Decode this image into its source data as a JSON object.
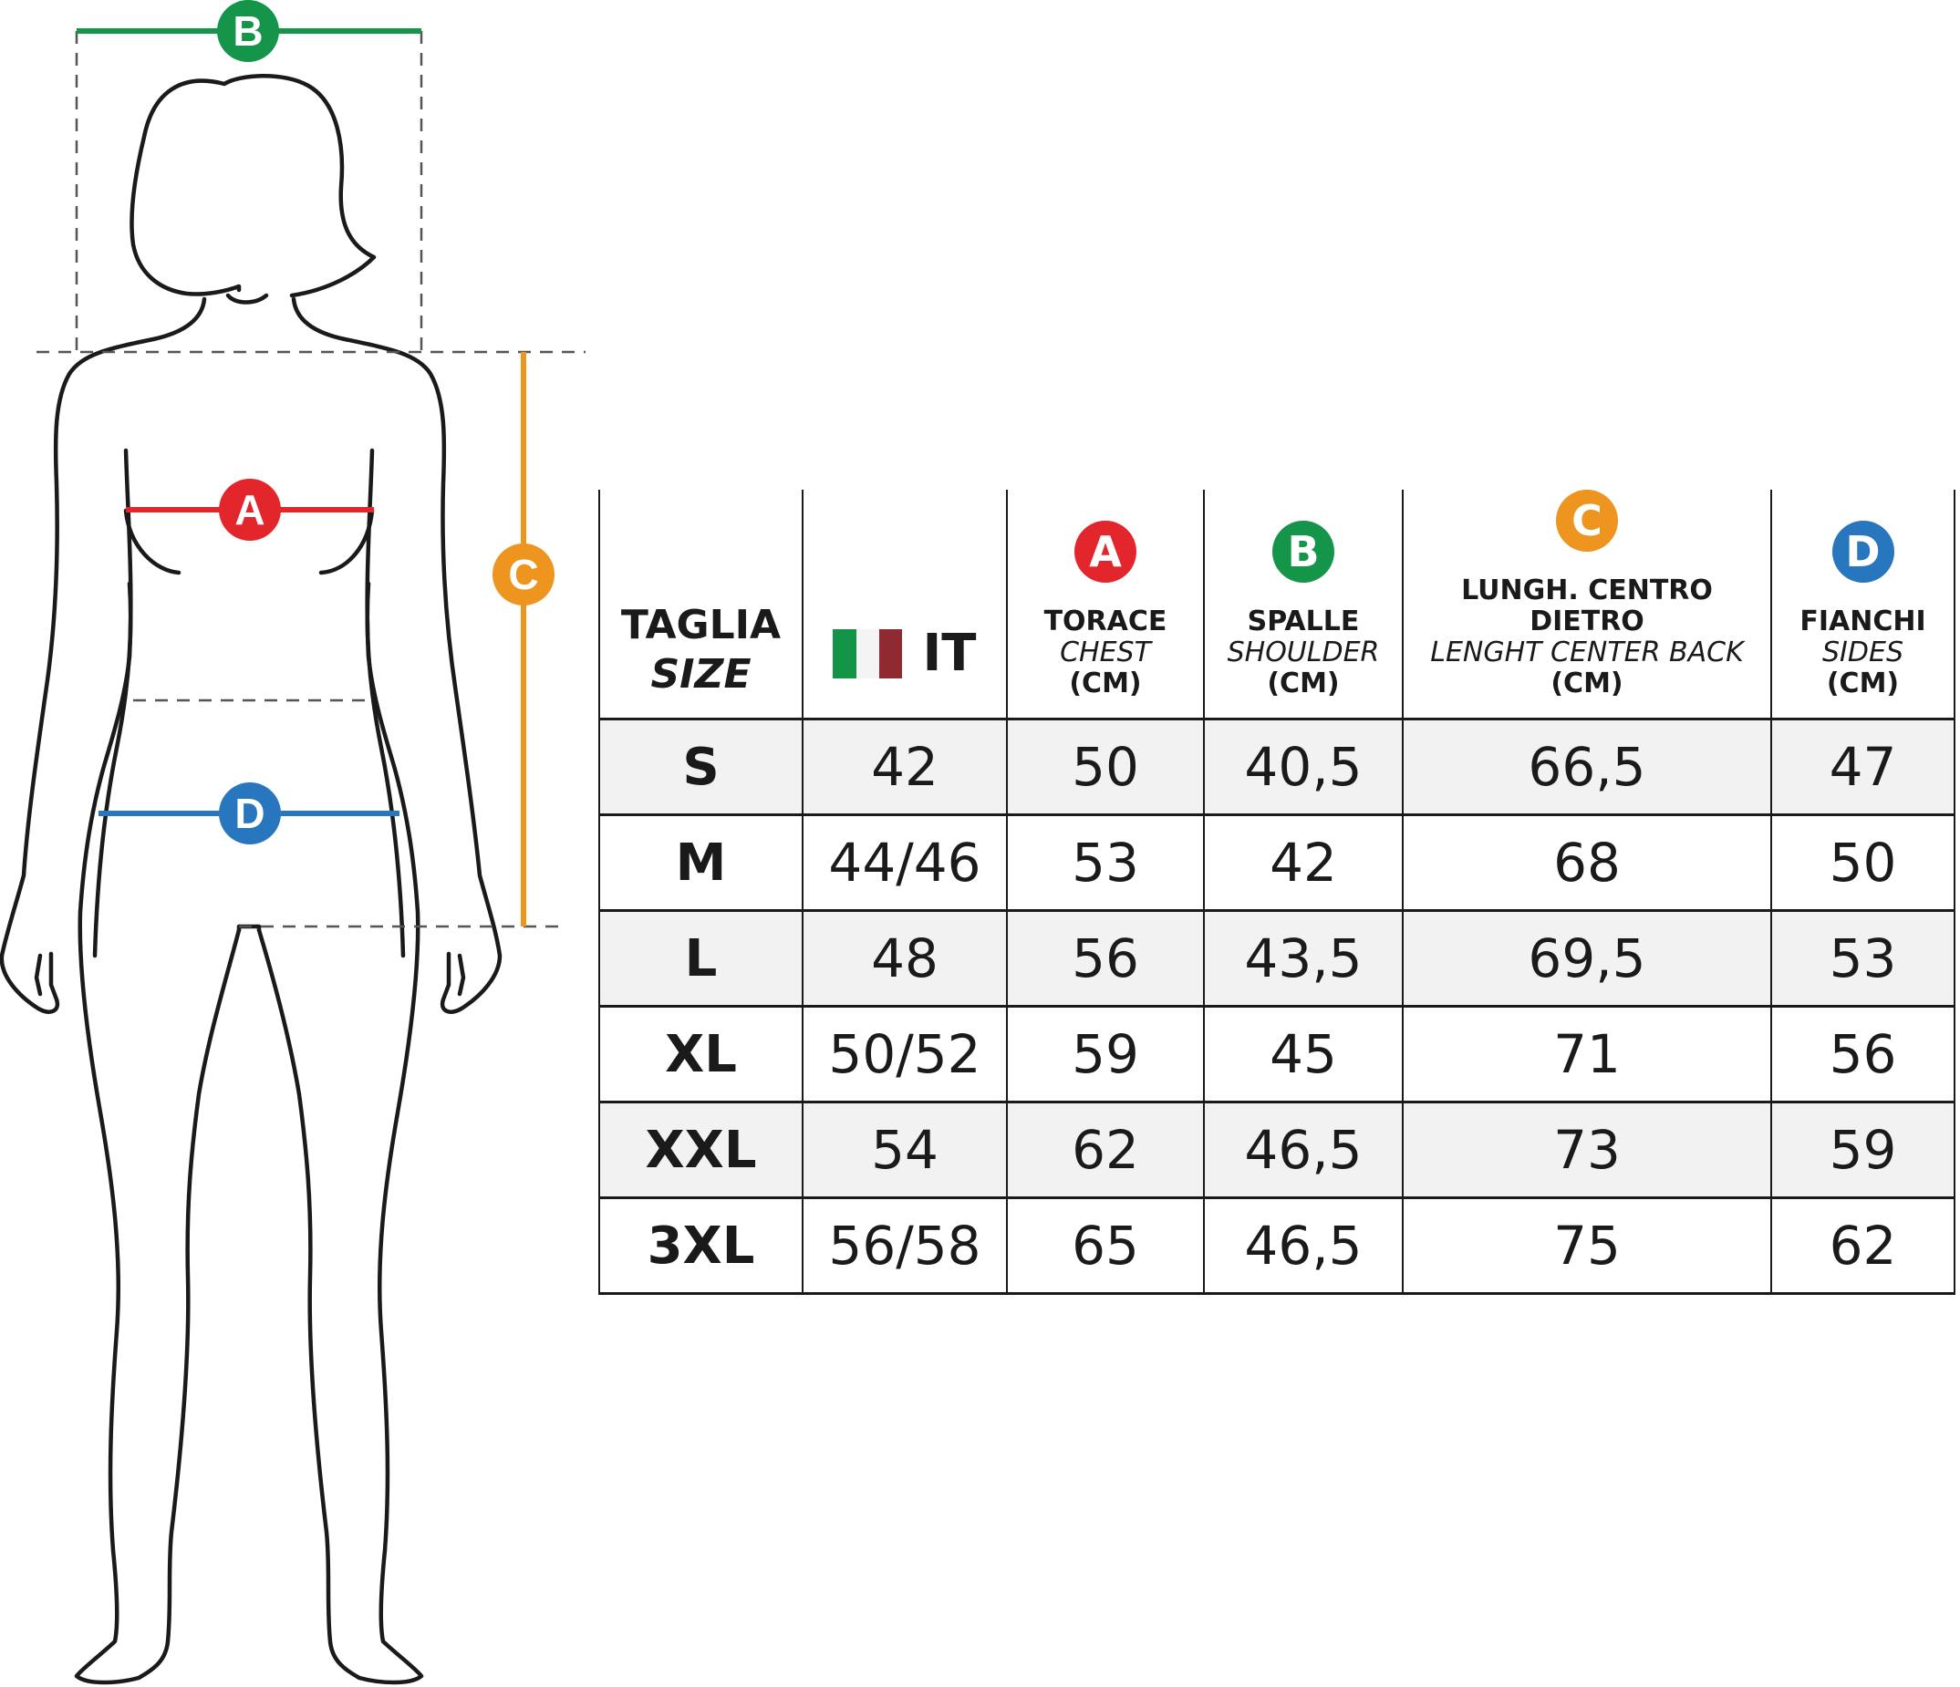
{
  "colors": {
    "A": "#e3262c",
    "B": "#14954a",
    "C": "#ee951f",
    "D": "#2876be",
    "outline": "#1a1a1a",
    "row_alt": "#f2f2f2",
    "flag_green": "#139446",
    "flag_white": "#f4f4f4",
    "flag_red": "#8e2a30"
  },
  "figure": {
    "labels": {
      "A": "A",
      "B": "B",
      "C": "C",
      "D": "D"
    }
  },
  "table": {
    "headers": {
      "size": {
        "main": "TAGLIA",
        "it": "SIZE"
      },
      "it": {
        "flag_icon": "italy-flag-icon",
        "label": "IT"
      },
      "chest": {
        "badge": "A",
        "main": "TORACE",
        "it": "CHEST",
        "unit": "(CM)"
      },
      "shoulder": {
        "badge": "B",
        "main": "SPALLE",
        "it": "SHOULDER",
        "unit": "(CM)"
      },
      "length": {
        "badge": "C",
        "main": "LUNGH. CENTRO DIETRO",
        "it": "LENGHT CENTER BACK",
        "unit": "(CM)"
      },
      "sides": {
        "badge": "D",
        "main": "FIANCHI",
        "it": "SIDES",
        "unit": "(CM)"
      }
    },
    "rows": [
      {
        "size": "S",
        "it": "42",
        "chest": "50",
        "shoulder": "40,5",
        "length": "66,5",
        "sides": "47"
      },
      {
        "size": "M",
        "it": "44/46",
        "chest": "53",
        "shoulder": "42",
        "length": "68",
        "sides": "50"
      },
      {
        "size": "L",
        "it": "48",
        "chest": "56",
        "shoulder": "43,5",
        "length": "69,5",
        "sides": "53"
      },
      {
        "size": "XL",
        "it": "50/52",
        "chest": "59",
        "shoulder": "45",
        "length": "71",
        "sides": "56"
      },
      {
        "size": "XXL",
        "it": "54",
        "chest": "62",
        "shoulder": "46,5",
        "length": "73",
        "sides": "59"
      },
      {
        "size": "3XL",
        "it": "56/58",
        "chest": "65",
        "shoulder": "46,5",
        "length": "75",
        "sides": "62"
      }
    ]
  }
}
